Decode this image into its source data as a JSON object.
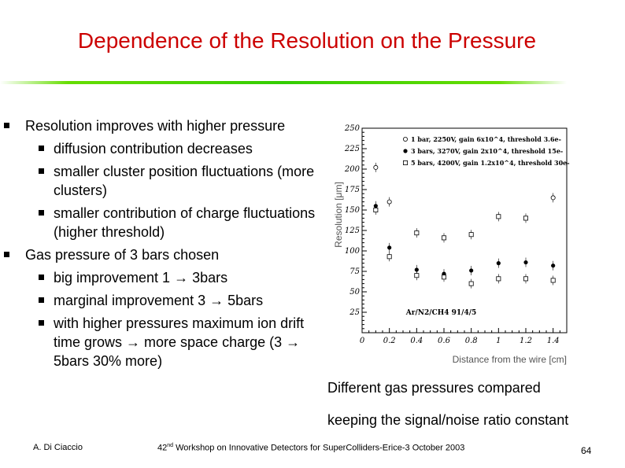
{
  "slide": {
    "title": "Dependence of the Resolution on the Pressure"
  },
  "bullets": [
    {
      "level": 1,
      "text": "Resolution improves with higher pressure"
    },
    {
      "level": 2,
      "text": "diffusion contribution decreases"
    },
    {
      "level": 2,
      "text": "smaller cluster position fluctuations (more clusters)"
    },
    {
      "level": 2,
      "text": "smaller contribution of charge fluctuations (higher threshold)"
    },
    {
      "level": 1,
      "text": "Gas pressure of 3 bars chosen"
    },
    {
      "level": 2,
      "text": "big improvement 1 → 3bars"
    },
    {
      "level": 2,
      "text": "marginal improvement 3 → 5bars"
    },
    {
      "level": 2,
      "text": "with higher pressures maximum ion drift time grows → more space charge (3 → 5bars 30% more)"
    }
  ],
  "captions": {
    "line1": "Different gas pressures compared",
    "line2": "keeping the signal/noise ratio constant"
  },
  "footer": {
    "author": "A. Di Ciaccio",
    "workshop_num": "42",
    "workshop_sup": "nd",
    "workshop_text": " Workshop on Innovative Detectors for SuperColliders-Erice-3 October 2003",
    "page": "64"
  },
  "chart_data": {
    "type": "scatter",
    "xlabel": "Distance from the wire [cm]",
    "ylabel": "Resolution [μm]",
    "xlim": [
      0,
      1.5
    ],
    "ylim": [
      0,
      250
    ],
    "xticks": [
      "0",
      "0.2",
      "0.4",
      "0.6",
      "0.8",
      "1",
      "1.2",
      "1.4"
    ],
    "yticks": [
      "25",
      "50",
      "75",
      "100",
      "125",
      "150",
      "175",
      "200",
      "225",
      "250"
    ],
    "annotation": "Ar/N2/CH4 91/4/5",
    "legend_position": "top-right",
    "series": [
      {
        "name": "1 bar, 2250V, gain 6x10^4, threshold 3.6e-",
        "marker": "open-circle",
        "x": [
          0.1,
          0.2,
          1.4
        ],
        "y": [
          202,
          160,
          165
        ]
      },
      {
        "name": "3 bars, 3270V, gain 2x10^4, threshold 15e-",
        "marker": "filled-circle",
        "x": [
          0.1,
          0.2,
          0.4,
          0.6,
          0.8,
          1.0,
          1.2,
          1.4
        ],
        "y": [
          155,
          104,
          77,
          72,
          76,
          85,
          86,
          82
        ]
      },
      {
        "name": "5 bars, 4200V, gain 1.2x10^4, threshold 30e-",
        "marker": "open-square",
        "x": [
          0.1,
          0.2,
          0.4,
          0.6,
          0.8,
          1.0,
          1.2,
          1.4
        ],
        "y": [
          150,
          93,
          70,
          68,
          60,
          66,
          66,
          64
        ]
      },
      {
        "name": "",
        "marker": "open-square",
        "x": [
          0.4,
          0.6,
          0.8,
          1.0,
          1.2
        ],
        "y": [
          122,
          116,
          120,
          142,
          140
        ]
      }
    ]
  }
}
